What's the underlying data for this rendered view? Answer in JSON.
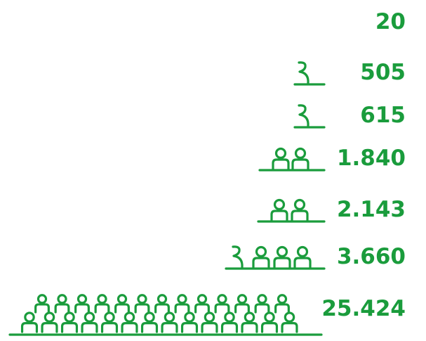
{
  "chart_data": {
    "type": "bar",
    "orientation": "horizontal",
    "style": "pictogram",
    "color": "#1a9c3c",
    "icon": "person-icon",
    "values": [
      20,
      505,
      615,
      1840,
      2143,
      3660,
      25424
    ],
    "labels": [
      "20",
      "505",
      "615",
      "1.840",
      "2.143",
      "3.660",
      "25.424"
    ]
  }
}
